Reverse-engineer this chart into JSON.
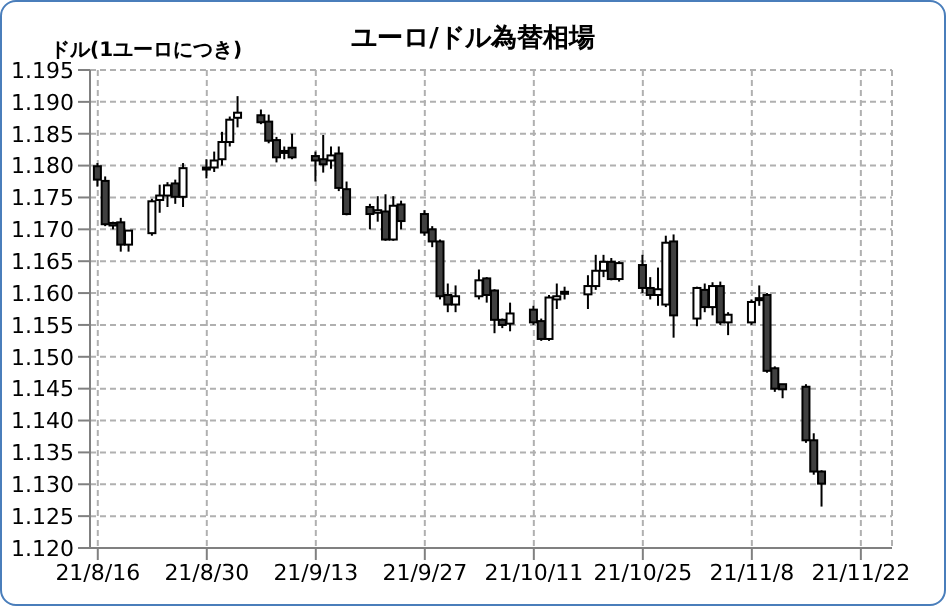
{
  "chart_data": {
    "type": "candlestick",
    "title": "ユーロ/ドル為替相場",
    "ylabel": "ドル(1ユーロにつき)",
    "x": [
      "--08-16",
      "--08-17",
      "--08-18",
      "--08-19",
      "--08-20",
      "--08-23",
      "--08-24",
      "--08-25",
      "--08-26",
      "--08-27",
      "--08-30",
      "--08-31",
      "--09-01",
      "--09-02",
      "--09-03",
      "--09-06",
      "--09-07",
      "--09-08",
      "--09-09",
      "--09-10",
      "--09-13",
      "--09-14",
      "--09-15",
      "--09-16",
      "--09-17",
      "--09-20",
      "--09-21",
      "--09-22",
      "--09-23",
      "--09-24",
      "--09-27",
      "--09-28",
      "--09-29",
      "--09-30",
      "--10-01",
      "--10-04",
      "--10-05",
      "--10-06",
      "--10-07",
      "--10-08",
      "--10-11",
      "--10-12",
      "--10-13",
      "--10-14",
      "--10-15",
      "--10-18",
      "--10-19",
      "--10-20",
      "--10-21",
      "--10-22",
      "--10-25",
      "--10-26",
      "--10-27",
      "--10-28",
      "--10-29",
      "--11-01",
      "--11-02",
      "--11-03",
      "--11-04",
      "--11-05",
      "--11-08",
      "--11-09",
      "--11-10",
      "--11-11",
      "--11-12",
      "--11-15",
      "--11-16",
      "--11-17"
    ],
    "ohlc": [
      [
        1.1799,
        1.1804,
        1.1767,
        1.1778
      ],
      [
        1.1776,
        1.1783,
        1.1705,
        1.1708
      ],
      [
        1.171,
        1.1712,
        1.17,
        1.1706
      ],
      [
        1.1711,
        1.1718,
        1.1665,
        1.1676
      ],
      [
        1.1676,
        1.1698,
        1.1665,
        1.1698
      ],
      [
        1.1694,
        1.1748,
        1.169,
        1.1744
      ],
      [
        1.1746,
        1.177,
        1.1726,
        1.1753
      ],
      [
        1.1753,
        1.1774,
        1.1735,
        1.1769
      ],
      [
        1.1772,
        1.1778,
        1.174,
        1.1751
      ],
      [
        1.1751,
        1.1804,
        1.1735,
        1.1796
      ],
      [
        1.1797,
        1.181,
        1.178,
        1.1795
      ],
      [
        1.1797,
        1.1822,
        1.179,
        1.1808
      ],
      [
        1.181,
        1.1853,
        1.18,
        1.1837
      ],
      [
        1.1837,
        1.1877,
        1.183,
        1.1872
      ],
      [
        1.1875,
        1.1909,
        1.186,
        1.1883
      ],
      [
        1.1879,
        1.1888,
        1.1865,
        1.1868
      ],
      [
        1.1869,
        1.188,
        1.1835,
        1.1839
      ],
      [
        1.184,
        1.1845,
        1.1805,
        1.1813
      ],
      [
        1.182,
        1.183,
        1.181,
        1.1823
      ],
      [
        1.1828,
        1.185,
        1.181,
        1.1813
      ],
      [
        1.1815,
        1.1822,
        1.1775,
        1.1808
      ],
      [
        1.181,
        1.1848,
        1.1789,
        1.1802
      ],
      [
        1.1808,
        1.183,
        1.1795,
        1.1816
      ],
      [
        1.1819,
        1.183,
        1.176,
        1.1765
      ],
      [
        1.1763,
        1.1775,
        1.1722,
        1.1724
      ],
      [
        1.1735,
        1.174,
        1.17,
        1.1724
      ],
      [
        1.1726,
        1.1752,
        1.1712,
        1.173
      ],
      [
        1.1728,
        1.1755,
        1.1682,
        1.1684
      ],
      [
        1.1684,
        1.1752,
        1.1682,
        1.1737
      ],
      [
        1.1739,
        1.1745,
        1.17,
        1.1713
      ],
      [
        1.1724,
        1.173,
        1.169,
        1.1695
      ],
      [
        1.17,
        1.1705,
        1.1672,
        1.1681
      ],
      [
        1.1681,
        1.1684,
        1.159,
        1.1595
      ],
      [
        1.1597,
        1.1615,
        1.157,
        1.1582
      ],
      [
        1.1582,
        1.1612,
        1.157,
        1.1595
      ],
      [
        1.1595,
        1.1637,
        1.159,
        1.162
      ],
      [
        1.1623,
        1.1625,
        1.1585,
        1.1597
      ],
      [
        1.1604,
        1.1606,
        1.1537,
        1.1558
      ],
      [
        1.1558,
        1.156,
        1.1545,
        1.155
      ],
      [
        1.1552,
        1.1585,
        1.154,
        1.1568
      ],
      [
        1.1574,
        1.158,
        1.155,
        1.1554
      ],
      [
        1.1556,
        1.156,
        1.1525,
        1.1528
      ],
      [
        1.1528,
        1.1597,
        1.1525,
        1.1593
      ],
      [
        1.159,
        1.1615,
        1.1575,
        1.1595
      ],
      [
        1.16,
        1.161,
        1.159,
        1.1602
      ],
      [
        1.1598,
        1.1628,
        1.1575,
        1.1611
      ],
      [
        1.1611,
        1.166,
        1.1605,
        1.1635
      ],
      [
        1.1635,
        1.166,
        1.1625,
        1.1649
      ],
      [
        1.1649,
        1.1655,
        1.162,
        1.1622
      ],
      [
        1.1622,
        1.165,
        1.1618,
        1.1647
      ],
      [
        1.1644,
        1.166,
        1.16,
        1.1608
      ],
      [
        1.1608,
        1.1625,
        1.159,
        1.1597
      ],
      [
        1.1597,
        1.164,
        1.158,
        1.1606
      ],
      [
        1.1582,
        1.169,
        1.1578,
        1.1679
      ],
      [
        1.1681,
        1.1692,
        1.153,
        1.1565
      ],
      [
        1.156,
        1.161,
        1.1548,
        1.1608
      ],
      [
        1.1605,
        1.1615,
        1.157,
        1.1578
      ],
      [
        1.1578,
        1.1617,
        1.1565,
        1.1611
      ],
      [
        1.1611,
        1.1618,
        1.155,
        1.1554
      ],
      [
        1.1554,
        1.157,
        1.1534,
        1.1566
      ],
      [
        1.1554,
        1.159,
        1.155,
        1.1586
      ],
      [
        1.159,
        1.1612,
        1.158,
        1.1592
      ],
      [
        1.1597,
        1.16,
        1.1475,
        1.1478
      ],
      [
        1.1482,
        1.1485,
        1.1445,
        1.145
      ],
      [
        1.1457,
        1.1457,
        1.1435,
        1.1449
      ],
      [
        1.1453,
        1.1457,
        1.1365,
        1.1369
      ],
      [
        1.1369,
        1.138,
        1.1315,
        1.132
      ],
      [
        1.132,
        1.1322,
        1.1265,
        1.1301
      ]
    ],
    "colors": [
      "#404040",
      "#404040",
      "#404040",
      "#404040",
      "#ffffff",
      "#ffffff",
      "#ffffff",
      "#ffffff",
      "#404040",
      "#ffffff",
      "#404040",
      "#ffffff",
      "#ffffff",
      "#ffffff",
      "#ffffff",
      "#404040",
      "#404040",
      "#404040",
      "#ffffff",
      "#404040",
      "#404040",
      "#404040",
      "#ffffff",
      "#404040",
      "#404040",
      "#404040",
      "#ffffff",
      "#404040",
      "#ffffff",
      "#404040",
      "#404040",
      "#404040",
      "#404040",
      "#404040",
      "#ffffff",
      "#ffffff",
      "#404040",
      "#404040",
      "#404040",
      "#ffffff",
      "#404040",
      "#404040",
      "#ffffff",
      "#ffffff",
      "#ffffff",
      "#ffffff",
      "#ffffff",
      "#ffffff",
      "#404040",
      "#ffffff",
      "#404040",
      "#404040",
      "#ffffff",
      "#ffffff",
      "#404040",
      "#ffffff",
      "#404040",
      "#ffffff",
      "#404040",
      "#ffffff",
      "#ffffff",
      "#ffffff",
      "#404040",
      "#404040",
      "#404040",
      "#404040",
      "#404040",
      "#404040"
    ],
    "xlim": [
      "--08-15",
      "--11-26"
    ],
    "xticks": [
      {
        "value": "--08-16",
        "label": "21/8/16"
      },
      {
        "value": "--08-30",
        "label": "21/8/30"
      },
      {
        "value": "--09-13",
        "label": "21/9/13"
      },
      {
        "value": "--09-27",
        "label": "21/9/27"
      },
      {
        "value": "--10-11",
        "label": "21/10/11"
      },
      {
        "value": "--10-25",
        "label": "21/10/25"
      },
      {
        "value": "--11-08",
        "label": "21/11/8"
      },
      {
        "value": "--11-22",
        "label": "21/11/22"
      }
    ],
    "ylim": [
      1.12,
      1.195
    ],
    "yticks": [
      {
        "value": 1.12,
        "label": "1.120"
      },
      {
        "value": 1.125,
        "label": "1.125"
      },
      {
        "value": 1.13,
        "label": "1.130"
      },
      {
        "value": 1.135,
        "label": "1.135"
      },
      {
        "value": 1.14,
        "label": "1.140"
      },
      {
        "value": 1.145,
        "label": "1.145"
      },
      {
        "value": 1.15,
        "label": "1.150"
      },
      {
        "value": 1.155,
        "label": "1.155"
      },
      {
        "value": 1.16,
        "label": "1.160"
      },
      {
        "value": 1.165,
        "label": "1.165"
      },
      {
        "value": 1.17,
        "label": "1.170"
      },
      {
        "value": 1.175,
        "label": "1.175"
      },
      {
        "value": 1.18,
        "label": "1.180"
      },
      {
        "value": 1.185,
        "label": "1.185"
      },
      {
        "value": 1.19,
        "label": "1.190"
      },
      {
        "value": 1.195,
        "label": "1.195"
      }
    ],
    "grid": true,
    "legend": false
  }
}
